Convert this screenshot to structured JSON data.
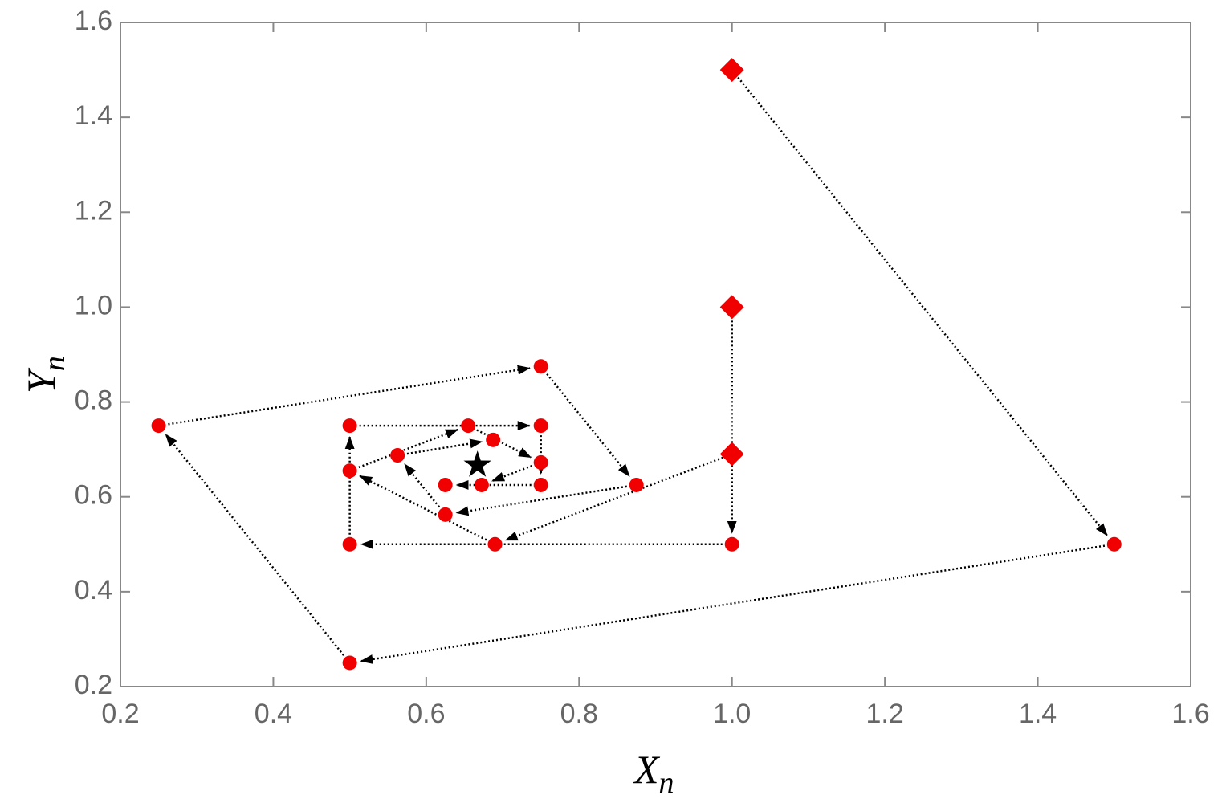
{
  "chart_data": {
    "type": "trajectory",
    "xlabel": "X",
    "xlabel_sub": "n",
    "ylabel": "Y",
    "ylabel_sub": "n",
    "xlim": [
      0.2,
      1.6
    ],
    "ylim": [
      0.2,
      1.6
    ],
    "xticks": [
      0.2,
      0.4,
      0.6,
      0.8,
      {
        "value": 1,
        "label": "1.0"
      },
      1.2,
      1.4,
      1.6
    ],
    "yticks": [
      0.2,
      0.4,
      0.6,
      0.8,
      {
        "value": 1,
        "label": "1.0"
      },
      1.2,
      1.4,
      1.6
    ],
    "grid": false,
    "color": "#f00000",
    "line_color": "#000000",
    "start_marker": "diamond",
    "marker": "circle",
    "series": [
      {
        "x": [
          1,
          1.5,
          0.5,
          0.25,
          0.75,
          0.875,
          0.625,
          0.5625,
          0.6875
        ],
        "y": [
          1.5,
          0.5,
          0.25,
          0.75,
          0.875,
          0.625,
          0.5625,
          0.6875,
          0.72
        ]
      },
      {
        "x": [
          1,
          1,
          0.5,
          0.5,
          0.75,
          0.75,
          0.625
        ],
        "y": [
          1,
          0.5,
          0.5,
          0.75,
          0.75,
          0.625,
          0.625
        ]
      },
      {
        "x": [
          1,
          0.69,
          0.5,
          0.655,
          0.75,
          0.6725
        ],
        "y": [
          0.69,
          0.5,
          0.655,
          0.75,
          0.6725,
          0.625
        ]
      }
    ],
    "fixed_point": {
      "x": 0.667,
      "y": 0.667,
      "marker": "star",
      "color": "#000000"
    }
  }
}
